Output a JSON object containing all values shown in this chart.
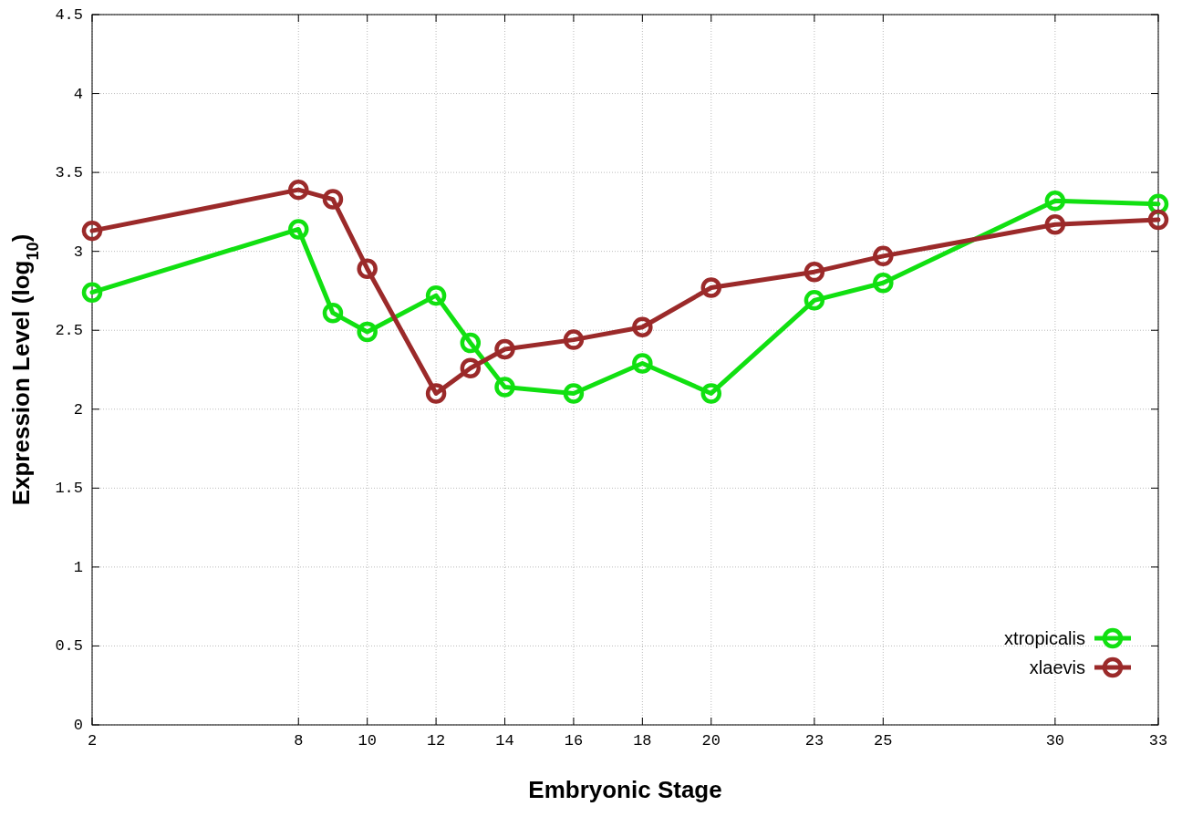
{
  "chart_data": {
    "type": "line",
    "xlabel": "Embryonic Stage",
    "ylabel": "Expression Level (log$_{10}$)",
    "x": [
      2,
      8,
      9,
      10,
      12,
      13,
      14,
      16,
      18,
      20,
      23,
      25,
      30,
      33
    ],
    "series": [
      {
        "name": "xtropicalis",
        "color": "#11e011",
        "values": [
          2.74,
          3.14,
          2.61,
          2.49,
          2.72,
          2.42,
          2.14,
          2.1,
          2.29,
          2.1,
          2.69,
          2.8,
          3.32,
          3.3
        ]
      },
      {
        "name": "xlaevis",
        "color": "#9b2a2a",
        "values": [
          3.13,
          3.39,
          3.33,
          2.89,
          2.1,
          2.26,
          2.38,
          2.44,
          2.52,
          2.77,
          2.87,
          2.97,
          3.17,
          3.2
        ]
      }
    ],
    "xlim": [
      2,
      33
    ],
    "xticks": [
      2,
      8,
      10,
      12,
      14,
      16,
      18,
      20,
      23,
      25,
      30,
      33
    ],
    "ylim": [
      0,
      4.5
    ],
    "yticks": [
      0,
      0.5,
      1,
      1.5,
      2,
      2.5,
      3,
      3.5,
      4,
      4.5
    ],
    "grid": true,
    "legend": "bottom right",
    "marker": "circle",
    "line_style": "solid"
  }
}
